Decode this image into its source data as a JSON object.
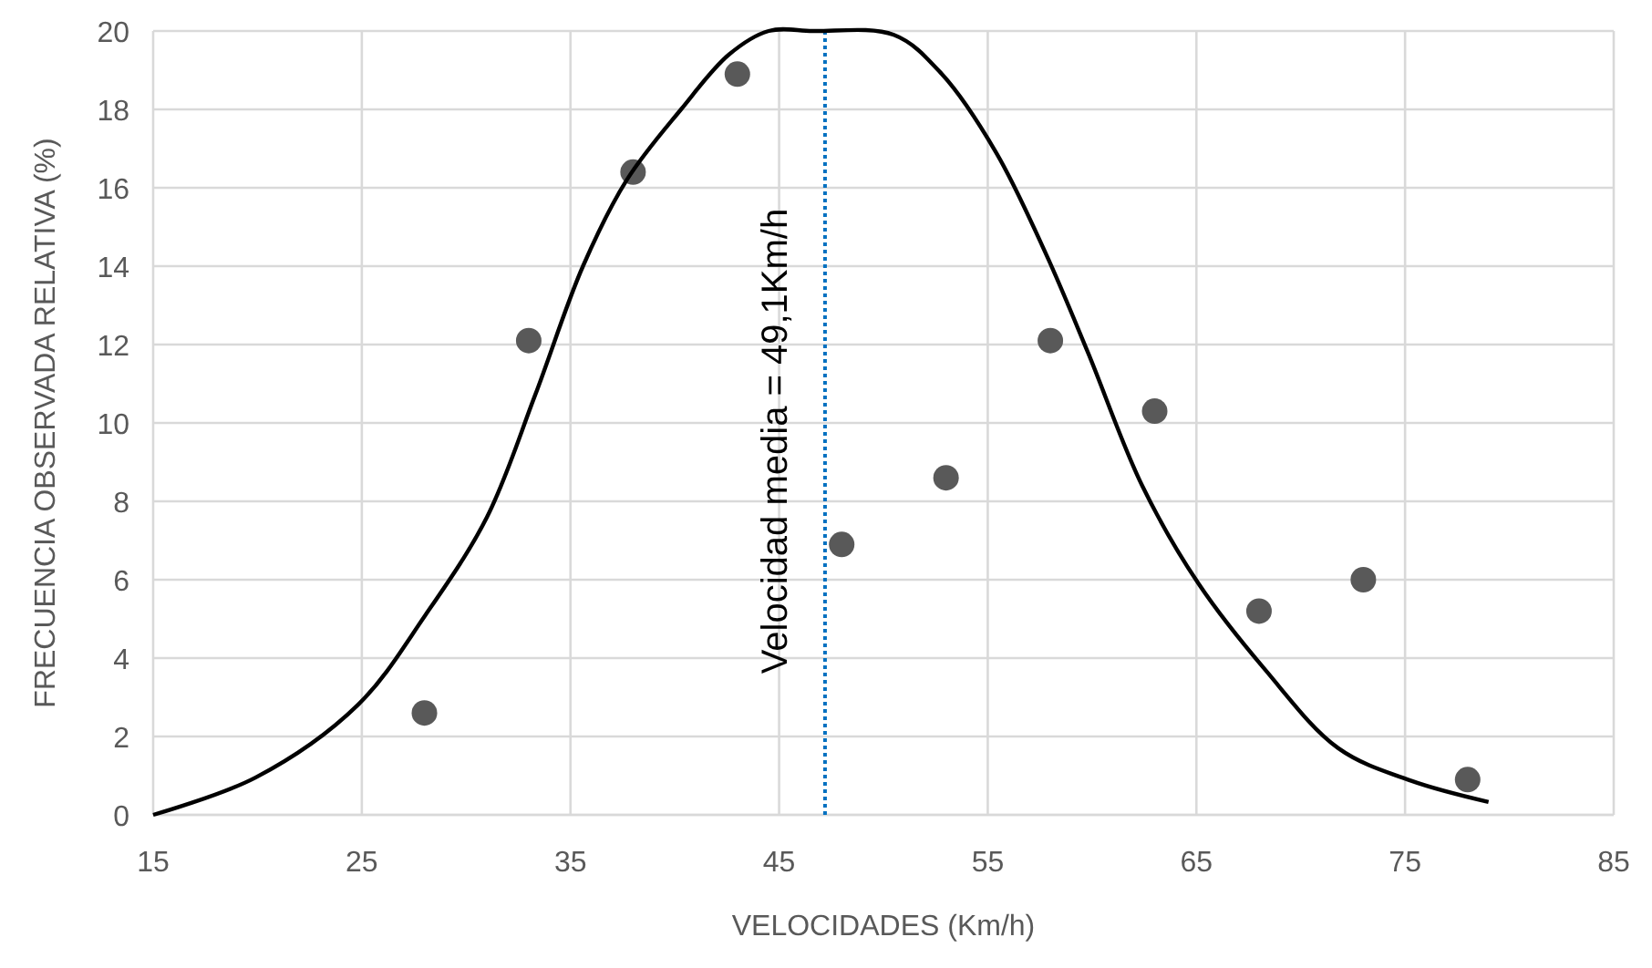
{
  "chart_data": {
    "type": "scatter",
    "xlabel": "VELOCIDADES (Km/h)",
    "ylabel": "FRECUENCIA OBSERVADA RELATIVA (%)",
    "x": [
      28,
      33,
      38,
      43,
      48,
      53,
      58,
      63,
      68,
      73,
      78
    ],
    "series": [
      {
        "color": "#595959",
        "marker": "circle",
        "values": [
          2.6,
          12.1,
          16.4,
          18.9,
          6.9,
          8.6,
          12.1,
          10.3,
          5.2,
          6.0,
          0.9
        ]
      },
      {
        "type": "line",
        "color": "#000000",
        "marker": "none",
        "line_style": "solid",
        "x": [
          15,
          19.9,
          24.8,
          28.05,
          31,
          33.3,
          35.6,
          37.7,
          40.3,
          42.6,
          44.5,
          46.6,
          50.5,
          52.8,
          55.4,
          57.8,
          59.8,
          62.4,
          65.1,
          68.3,
          71.8,
          75.3,
          79
        ],
        "values": [
          0,
          0.95,
          2.8,
          5.1,
          7.6,
          10.7,
          14,
          16.2,
          18,
          19.4,
          20,
          20,
          19.9,
          18.9,
          16.9,
          14.3,
          11.8,
          8.4,
          5.9,
          3.7,
          1.7,
          0.87,
          0.33
        ]
      }
    ],
    "xlim": [
      15,
      85
    ],
    "xticks": [
      15,
      25,
      35,
      45,
      55,
      65,
      75,
      85
    ],
    "ylim": [
      0,
      20
    ],
    "yticks": [
      0,
      2,
      4,
      6,
      8,
      10,
      12,
      14,
      16,
      18,
      20
    ],
    "grid": true,
    "annotations": [
      "Velocidad media = 49,1Km/h"
    ],
    "ref_lines": [
      {
        "axis": "x",
        "value": 47.2,
        "color": "#0070c0",
        "line_style": "dotted"
      }
    ]
  }
}
